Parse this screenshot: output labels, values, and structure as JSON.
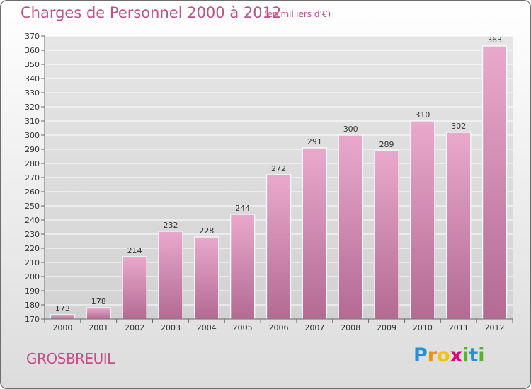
{
  "title": "Charges de Personnel 2000 à 2012",
  "unit_note": "(en milliers d'€)",
  "commune": "GROSBREUIL",
  "logo": {
    "letters": [
      "P",
      "r",
      "o",
      "x",
      "i",
      "t",
      "i"
    ],
    "colors": [
      "#2a8fd0",
      "#f29100",
      "#f2c500",
      "#e3007a",
      "#5bb030",
      "#2a8fd0",
      "#5bb030"
    ]
  },
  "colors": {
    "bar_top": "#e9a9cc",
    "bar_bottom": "#b36a93",
    "text_accent": "#c0508a"
  },
  "chart_data": {
    "type": "bar",
    "title": "Charges de Personnel 2000 à 2012",
    "categories": [
      "2000",
      "2001",
      "2002",
      "2003",
      "2004",
      "2005",
      "2006",
      "2007",
      "2008",
      "2009",
      "2010",
      "2011",
      "2012"
    ],
    "values": [
      173,
      178,
      214,
      232,
      228,
      244,
      272,
      291,
      300,
      289,
      310,
      302,
      363
    ],
    "ylim": [
      170,
      370
    ],
    "ytick_step": 10,
    "grid": true,
    "data_labels": true
  }
}
